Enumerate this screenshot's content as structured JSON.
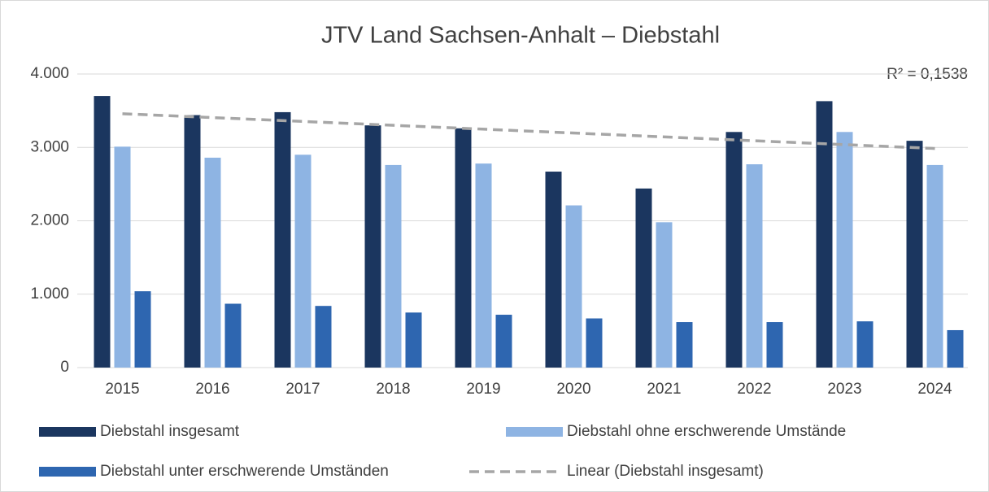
{
  "chart_data": {
    "type": "bar",
    "title": "JTV Land Sachsen-Anhalt – Diebstahl",
    "annotation": "R² = 0,1538",
    "categories": [
      "2015",
      "2016",
      "2017",
      "2018",
      "2019",
      "2020",
      "2021",
      "2022",
      "2023",
      "2024"
    ],
    "series": [
      {
        "name": "Diebstahl insgesamt",
        "color": "#1b365f",
        "values": [
          3700,
          3440,
          3480,
          3300,
          3260,
          2670,
          2440,
          3210,
          3630,
          3090
        ]
      },
      {
        "name": "Diebstahl ohne erschwerende Umstände",
        "color": "#8eb4e3",
        "values": [
          3010,
          2860,
          2900,
          2760,
          2780,
          2210,
          1980,
          2770,
          3210,
          2760
        ]
      },
      {
        "name": "Diebstahl unter erschwerende Umständen",
        "color": "#2e66b0",
        "values": [
          1040,
          870,
          840,
          750,
          720,
          670,
          620,
          620,
          630,
          510
        ]
      }
    ],
    "trendline": {
      "name": "Linear (Diebstahl insgesamt)",
      "series": 0,
      "color": "#a6a6a6"
    },
    "ylim": [
      0,
      4000
    ],
    "yticks": [
      0,
      {
        "value": 1000,
        "label": "1.000"
      },
      {
        "value": 2000,
        "label": "2.000"
      },
      {
        "value": 3000,
        "label": "3.000"
      },
      {
        "value": 4000,
        "label": "4.000"
      }
    ],
    "grid": true
  }
}
